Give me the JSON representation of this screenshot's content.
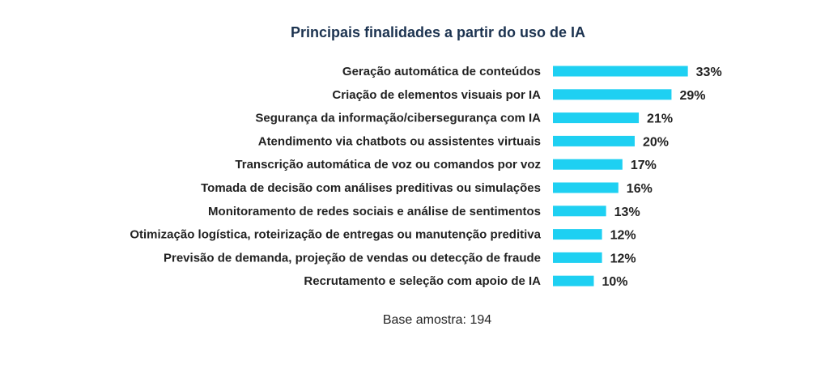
{
  "chart_data": {
    "type": "bar",
    "orientation": "horizontal",
    "title": "Principais finalidades a partir do uso de IA",
    "categories": [
      "Geração automática de conteúdos",
      "Criação de elementos visuais por IA",
      "Segurança da informação/cibersegurança com IA",
      "Atendimento via chatbots ou assistentes virtuais",
      "Transcrição automática de voz ou comandos por voz",
      "Tomada de decisão com análises preditivas ou simulações",
      "Monitoramento de redes sociais e análise de sentimentos",
      "Otimização logística, roteirização de entregas ou manutenção preditiva",
      "Previsão de demanda, projeção de vendas ou detecção de fraude",
      "Recrutamento e seleção com apoio de IA"
    ],
    "values": [
      33,
      29,
      21,
      20,
      17,
      16,
      13,
      12,
      12,
      10
    ],
    "value_labels": [
      "33%",
      "29%",
      "21%",
      "20%",
      "17%",
      "16%",
      "13%",
      "12%",
      "12%",
      "10%"
    ],
    "bar_color": "#1ed0f2",
    "grid": false,
    "xlabel": "",
    "ylabel": ""
  },
  "note": "Base amostra: 194"
}
